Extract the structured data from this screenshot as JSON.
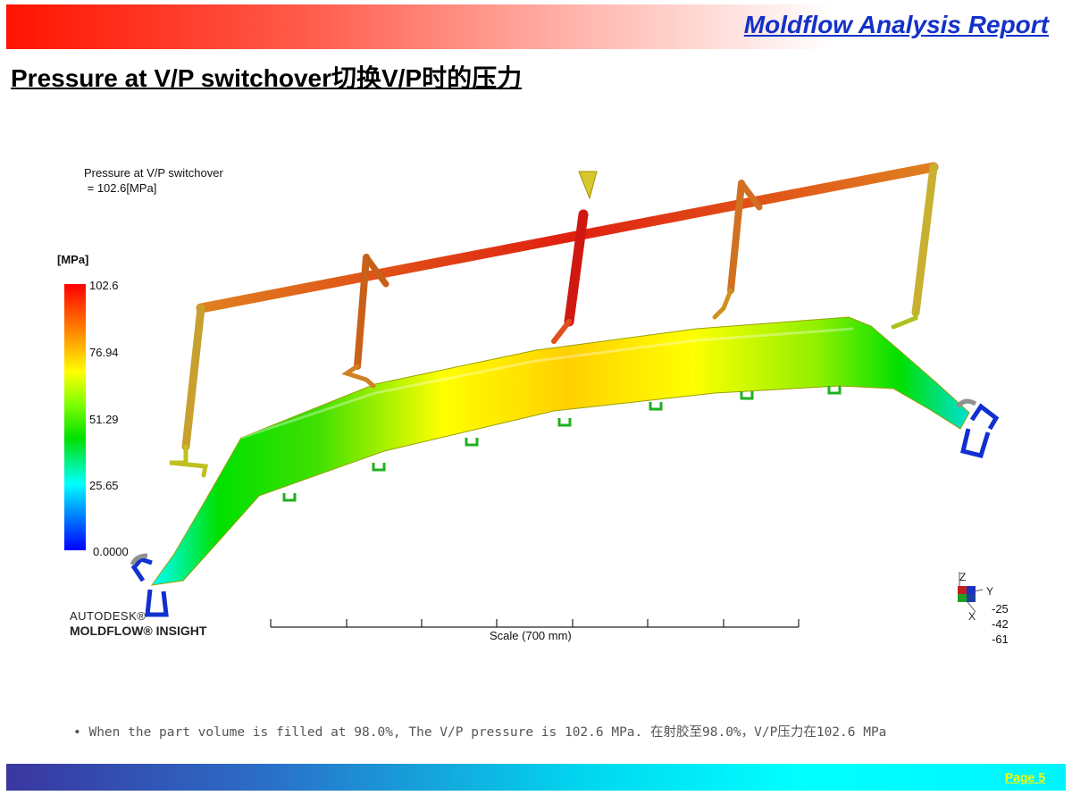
{
  "header": {
    "report_title": "Moldflow Analysis Report",
    "slide_title": "Pressure at V/P switchover切换V/P时的压力"
  },
  "plot": {
    "result_name": "Pressure at V/P switchover",
    "result_value": " = 102.6[MPa]",
    "unit": "[MPa]",
    "legend_ticks": [
      "102.6",
      "76.94",
      "51.29",
      "25.65",
      "0.0000"
    ],
    "scale_label": "Scale (700 mm)",
    "brand_line1": "AUTODESK®",
    "brand_line2": "MOLDFLOW® INSIGHT",
    "triad": {
      "z": "Z",
      "y": "Y",
      "x": "X",
      "values": [
        "-25",
        "-42",
        "-61"
      ]
    }
  },
  "footer": {
    "note": "• When the part volume is filled at 98.0%,  The V/P pressure is 102.6 MPa. 在射胶至98.0%，V/P压力在102.6 MPa",
    "page": "Page  5"
  },
  "colors": {
    "title_blue": "#1432c8",
    "banner_red": "#ff1400",
    "page_yellow": "#ffff00"
  }
}
